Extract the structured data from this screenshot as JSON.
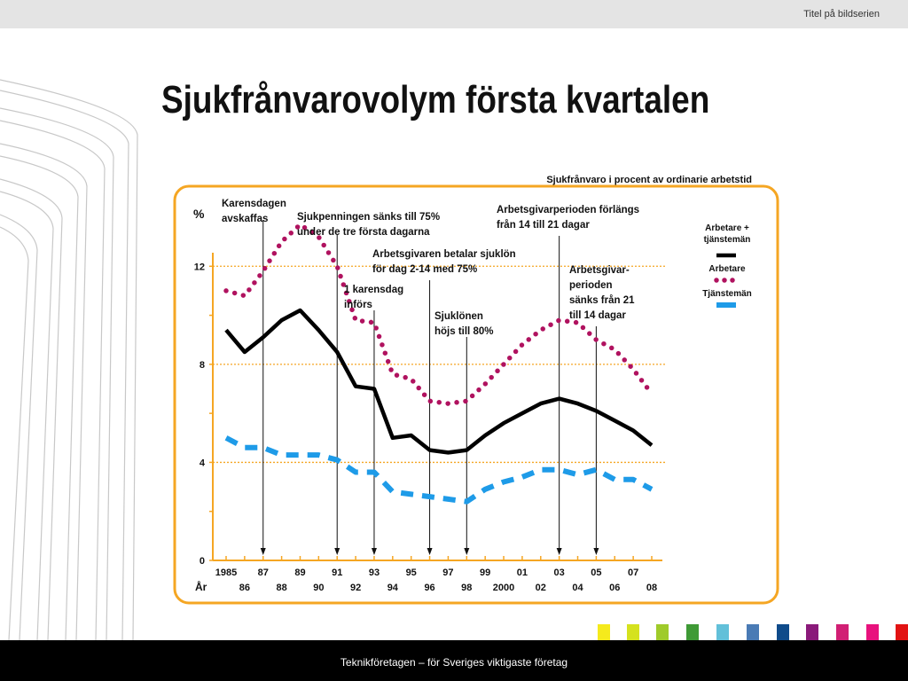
{
  "header": {
    "series_title": "Titel på bildserien"
  },
  "slide": {
    "title": "Sjukfrånvarovolym första kvartalen"
  },
  "footer": {
    "text": "Teknikföretagen – för Sveriges viktigaste företag"
  },
  "swatches": [
    "#f5ea1c",
    "#d5e21e",
    "#9fcb2a",
    "#3f9a36",
    "#62c0d9",
    "#4a7bb5",
    "#0f4b8a",
    "#8a1a7a",
    "#d11f74",
    "#e8127d",
    "#e21313"
  ],
  "chart_data": {
    "type": "line",
    "title": "Sjukfrånvaro i procent av ordinarie arbetstid",
    "ylabel": "%",
    "xlabel": "År",
    "ylim": [
      0,
      14
    ],
    "xlim": [
      1985,
      2008
    ],
    "yticks": [
      0,
      4,
      8,
      12
    ],
    "xticks_top": [
      "1985",
      "87",
      "89",
      "91",
      "93",
      "95",
      "97",
      "99",
      "01",
      "03",
      "05",
      "07"
    ],
    "xticks_bottom": [
      "86",
      "88",
      "90",
      "92",
      "94",
      "96",
      "98",
      "2000",
      "02",
      "04",
      "06",
      "08"
    ],
    "grid": "horizontal dotted at 4, 8, 12",
    "legend": {
      "placement": "right",
      "entries": [
        {
          "label": "Arbetare + tjänstemän",
          "color": "#000000",
          "style": "solid"
        },
        {
          "label": "Arbetare",
          "color": "#b0125f",
          "style": "dotted"
        },
        {
          "label": "Tjänstemän",
          "color": "#1e9be8",
          "style": "dashed"
        }
      ]
    },
    "series": [
      {
        "name": "Arbetare + tjänstemän",
        "color": "#000000",
        "x": [
          1985,
          1986,
          1987,
          1988,
          1989,
          1990,
          1991,
          1992,
          1993,
          1994,
          1995,
          1996,
          1997,
          1998,
          1999,
          2000,
          2001,
          2002,
          2003,
          2004,
          2005,
          2006,
          2007,
          2008
        ],
        "values": [
          9.4,
          8.5,
          9.1,
          9.8,
          10.2,
          9.4,
          8.5,
          7.1,
          7.0,
          5.0,
          5.1,
          4.5,
          4.4,
          4.5,
          5.1,
          5.6,
          6.0,
          6.4,
          6.6,
          6.4,
          6.1,
          5.7,
          5.3,
          4.7
        ]
      },
      {
        "name": "Arbetare",
        "color": "#b0125f",
        "x": [
          1985,
          1986,
          1987,
          1988,
          1989,
          1990,
          1991,
          1992,
          1993,
          1994,
          1995,
          1996,
          1997,
          1998,
          1999,
          2000,
          2001,
          2002,
          2003,
          2004,
          2005,
          2006,
          2007,
          2008
        ],
        "values": [
          11.0,
          10.8,
          11.8,
          13.0,
          13.7,
          13.2,
          12.0,
          9.8,
          9.7,
          7.6,
          7.4,
          6.5,
          6.4,
          6.5,
          7.2,
          8.0,
          8.8,
          9.4,
          9.8,
          9.7,
          9.0,
          8.6,
          7.8,
          6.8
        ]
      },
      {
        "name": "Tjänstemän",
        "color": "#1e9be8",
        "x": [
          1985,
          1986,
          1987,
          1988,
          1989,
          1990,
          1991,
          1992,
          1993,
          1994,
          1995,
          1996,
          1997,
          1998,
          1999,
          2000,
          2001,
          2002,
          2003,
          2004,
          2005,
          2006,
          2007,
          2008
        ],
        "values": [
          5.0,
          4.6,
          4.6,
          4.3,
          4.3,
          4.3,
          4.1,
          3.6,
          3.6,
          2.8,
          2.7,
          2.6,
          2.5,
          2.4,
          2.9,
          3.2,
          3.4,
          3.7,
          3.7,
          3.5,
          3.7,
          3.3,
          3.3,
          2.9
        ]
      }
    ],
    "annotations": [
      {
        "text": [
          "Karensdagen",
          "avskaffas"
        ],
        "x": 1987
      },
      {
        "text": [
          "Sjukpenningen sänks till 75%",
          "under de tre första dagarna"
        ],
        "x": 1991
      },
      {
        "text": [
          "1 karensdag",
          "införs"
        ],
        "x": 1993
      },
      {
        "text": [
          "Arbetsgivaren betalar sjuklön",
          "för dag 2-14 med 75%"
        ],
        "x": 1996
      },
      {
        "text": [
          "Sjuklönen",
          "höjs till 80%"
        ],
        "x": 1998
      },
      {
        "text": [
          "Arbetsgivarperioden förlängs",
          "från 14 till 21 dagar"
        ],
        "x": 2003
      },
      {
        "text": [
          "Arbetsgivar-",
          "perioden",
          "sänks från 21",
          "till 14 dagar"
        ],
        "x": 2005
      }
    ]
  }
}
